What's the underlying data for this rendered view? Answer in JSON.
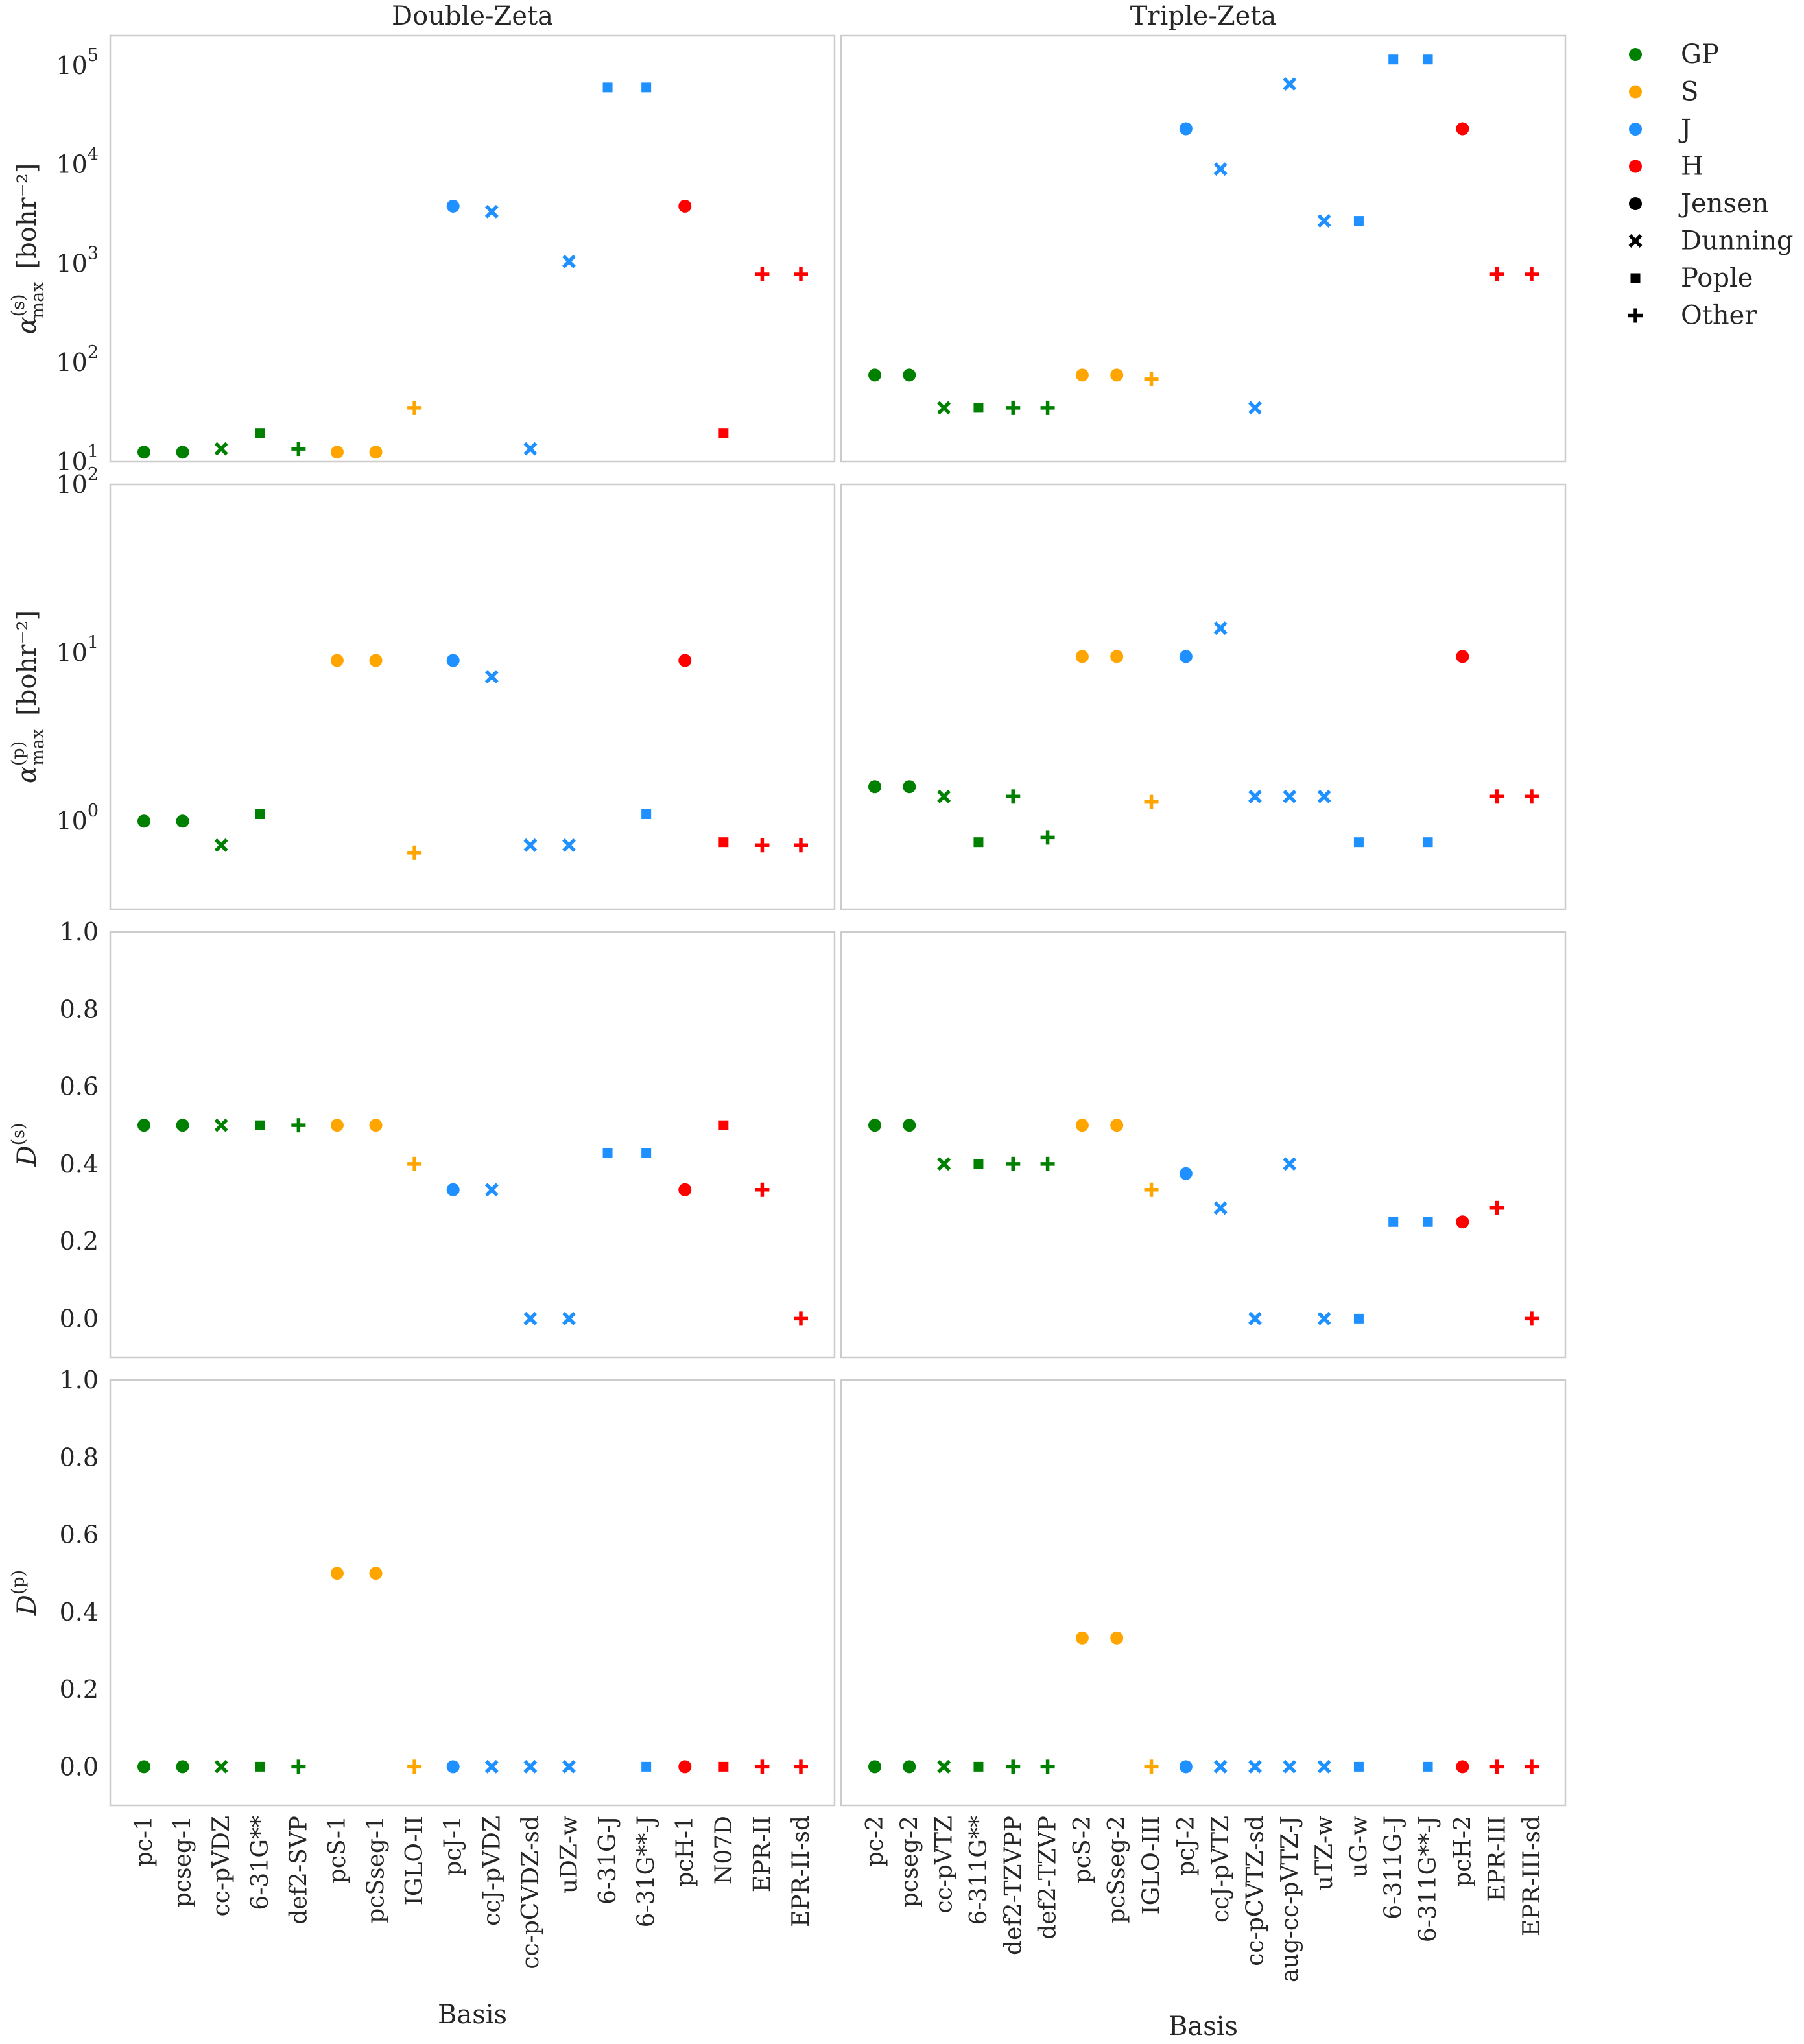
{
  "chart_data": {
    "type": "scatter",
    "column_titles": [
      "Double-Zeta",
      "Triple-Zeta"
    ],
    "xlabel": "Basis",
    "row_labels": [
      {
        "prefix": "α",
        "sup": "(s)",
        "sub": "max",
        "unit": "[bohr⁻²]"
      },
      {
        "prefix": "α",
        "sup": "(p)",
        "sub": "max",
        "unit": "[bohr⁻²]"
      },
      {
        "prefix": "D",
        "sup": "(s)",
        "sub": "",
        "unit": ""
      },
      {
        "prefix": "D",
        "sup": "(p)",
        "sub": "",
        "unit": ""
      }
    ],
    "rows": [
      {
        "scale": "log",
        "ylim": [
          10,
          200000
        ],
        "ticks": [
          {
            "v": 10,
            "e": "1"
          },
          {
            "v": 100,
            "e": "2"
          },
          {
            "v": 1000,
            "e": "3"
          },
          {
            "v": 10000,
            "e": "4"
          },
          {
            "v": 100000,
            "e": "5"
          }
        ]
      },
      {
        "scale": "log",
        "ylim": [
          0.3,
          100
        ],
        "ticks": [
          {
            "v": 1,
            "e": "0"
          },
          {
            "v": 10,
            "e": "1"
          },
          {
            "v": 100,
            "e": "2"
          }
        ]
      },
      {
        "scale": "linear",
        "ylim": [
          -0.1,
          1.0
        ],
        "ticks": [
          {
            "v": 0.0,
            "t": "0.0"
          },
          {
            "v": 0.2,
            "t": "0.2"
          },
          {
            "v": 0.4,
            "t": "0.4"
          },
          {
            "v": 0.6,
            "t": "0.6"
          },
          {
            "v": 0.8,
            "t": "0.8"
          },
          {
            "v": 1.0,
            "t": "1.0"
          }
        ]
      },
      {
        "scale": "linear",
        "ylim": [
          -0.1,
          1.0
        ],
        "ticks": [
          {
            "v": 0.0,
            "t": "0.0"
          },
          {
            "v": 0.2,
            "t": "0.2"
          },
          {
            "v": 0.4,
            "t": "0.4"
          },
          {
            "v": 0.6,
            "t": "0.6"
          },
          {
            "v": 0.8,
            "t": "0.8"
          },
          {
            "v": 1.0,
            "t": "1.0"
          }
        ]
      }
    ],
    "groups": [
      {
        "key": "GP",
        "label": "GP",
        "color": "#008000"
      },
      {
        "key": "S",
        "label": "S",
        "color": "#FFA500"
      },
      {
        "key": "J",
        "label": "J",
        "color": "#1E90FF"
      },
      {
        "key": "H",
        "label": "H",
        "color": "#FF0000"
      }
    ],
    "families": [
      {
        "key": "Jensen",
        "label": "Jensen",
        "marker": "circle"
      },
      {
        "key": "Dunning",
        "label": "Dunning",
        "marker": "x"
      },
      {
        "key": "Pople",
        "label": "Pople",
        "marker": "square"
      },
      {
        "key": "Other",
        "label": "Other",
        "marker": "plus"
      }
    ],
    "columns": [
      {
        "title": "Double-Zeta",
        "bases": [
          {
            "name": "pc-1",
            "group": "GP",
            "family": "Jensen",
            "values": [
              12.5,
              1.0,
              0.5,
              0.0
            ]
          },
          {
            "name": "pcseg-1",
            "group": "GP",
            "family": "Jensen",
            "values": [
              12.5,
              1.0,
              0.5,
              0.0
            ]
          },
          {
            "name": "cc-pVDZ",
            "group": "GP",
            "family": "Dunning",
            "values": [
              13.5,
              0.72,
              0.5,
              0.0
            ]
          },
          {
            "name": "6-31G**",
            "group": "GP",
            "family": "Pople",
            "values": [
              19.5,
              1.1,
              0.5,
              0.0
            ]
          },
          {
            "name": "def2-SVP",
            "group": "GP",
            "family": "Other",
            "values": [
              13.5,
              null,
              0.5,
              0.0
            ]
          },
          {
            "name": "pcS-1",
            "group": "S",
            "family": "Jensen",
            "values": [
              12.5,
              9.0,
              0.5,
              0.5
            ]
          },
          {
            "name": "pcSseg-1",
            "group": "S",
            "family": "Jensen",
            "values": [
              12.5,
              9.0,
              0.5,
              0.5
            ]
          },
          {
            "name": "IGLO-II",
            "group": "S",
            "family": "Other",
            "values": [
              35.0,
              0.65,
              0.4,
              0.0
            ]
          },
          {
            "name": "pcJ-1",
            "group": "J",
            "family": "Jensen",
            "values": [
              3800,
              9.0,
              0.333,
              0.0
            ]
          },
          {
            "name": "ccJ-pVDZ",
            "group": "J",
            "family": "Dunning",
            "values": [
              3350,
              7.2,
              0.333,
              0.0
            ]
          },
          {
            "name": "cc-pCVDZ-sd",
            "group": "J",
            "family": "Dunning",
            "values": [
              13.5,
              0.72,
              0.0,
              0.0
            ]
          },
          {
            "name": "uDZ-w",
            "group": "J",
            "family": "Dunning",
            "values": [
              1050,
              0.72,
              0.0,
              0.0
            ]
          },
          {
            "name": "6-31G-J",
            "group": "J",
            "family": "Pople",
            "values": [
              60000,
              null,
              0.429,
              null
            ]
          },
          {
            "name": "6-31G**-J",
            "group": "J",
            "family": "Pople",
            "values": [
              60000,
              1.1,
              0.429,
              0.0
            ]
          },
          {
            "name": "pcH-1",
            "group": "H",
            "family": "Jensen",
            "values": [
              3800,
              9.0,
              0.333,
              0.0
            ]
          },
          {
            "name": "N07D",
            "group": "H",
            "family": "Pople",
            "values": [
              19.5,
              0.75,
              0.5,
              0.0
            ]
          },
          {
            "name": "EPR-II",
            "group": "H",
            "family": "Other",
            "values": [
              780,
              0.72,
              0.333,
              0.0
            ]
          },
          {
            "name": "EPR-II-sd",
            "group": "H",
            "family": "Other",
            "values": [
              780,
              0.72,
              0.0,
              0.0
            ]
          }
        ]
      },
      {
        "title": "Triple-Zeta",
        "bases": [
          {
            "name": "pc-2",
            "group": "GP",
            "family": "Jensen",
            "values": [
              75,
              1.6,
              0.5,
              0.0
            ]
          },
          {
            "name": "pcseg-2",
            "group": "GP",
            "family": "Jensen",
            "values": [
              75,
              1.6,
              0.5,
              0.0
            ]
          },
          {
            "name": "cc-pVTZ",
            "group": "GP",
            "family": "Dunning",
            "values": [
              35,
              1.4,
              0.4,
              0.0
            ]
          },
          {
            "name": "6-311G**",
            "group": "GP",
            "family": "Pople",
            "values": [
              35,
              0.75,
              0.4,
              0.0
            ]
          },
          {
            "name": "def2-TZVPP",
            "group": "GP",
            "family": "Other",
            "values": [
              35,
              1.4,
              0.4,
              0.0
            ]
          },
          {
            "name": "def2-TZVP",
            "group": "GP",
            "family": "Other",
            "values": [
              35,
              0.8,
              0.4,
              0.0
            ]
          },
          {
            "name": "pcS-2",
            "group": "S",
            "family": "Jensen",
            "values": [
              75,
              9.5,
              0.5,
              0.333
            ]
          },
          {
            "name": "pcSseg-2",
            "group": "S",
            "family": "Jensen",
            "values": [
              75,
              9.5,
              0.5,
              0.333
            ]
          },
          {
            "name": "IGLO-III",
            "group": "S",
            "family": "Other",
            "values": [
              68,
              1.3,
              0.333,
              0.0
            ]
          },
          {
            "name": "pcJ-2",
            "group": "J",
            "family": "Jensen",
            "values": [
              23000,
              9.5,
              0.375,
              0.0
            ]
          },
          {
            "name": "ccJ-pVTZ",
            "group": "J",
            "family": "Dunning",
            "values": [
              9000,
              14.0,
              0.286,
              0.0
            ]
          },
          {
            "name": "cc-pCVTZ-sd",
            "group": "J",
            "family": "Dunning",
            "values": [
              35,
              1.4,
              0.0,
              0.0
            ]
          },
          {
            "name": "aug-cc-pVTZ-J",
            "group": "J",
            "family": "Dunning",
            "values": [
              65000,
              1.4,
              0.4,
              0.0
            ]
          },
          {
            "name": "uTZ-w",
            "group": "J",
            "family": "Dunning",
            "values": [
              2700,
              1.4,
              0.0,
              0.0
            ]
          },
          {
            "name": "uG-w",
            "group": "J",
            "family": "Pople",
            "values": [
              2700,
              0.75,
              0.0,
              0.0
            ]
          },
          {
            "name": "6-311G-J",
            "group": "J",
            "family": "Pople",
            "values": [
              115000,
              null,
              0.25,
              null
            ]
          },
          {
            "name": "6-311G**-J",
            "group": "J",
            "family": "Pople",
            "values": [
              115000,
              0.75,
              0.25,
              0.0
            ]
          },
          {
            "name": "pcH-2",
            "group": "H",
            "family": "Jensen",
            "values": [
              23000,
              9.5,
              0.25,
              0.0
            ]
          },
          {
            "name": "EPR-III",
            "group": "H",
            "family": "Other",
            "values": [
              780,
              1.4,
              0.286,
              0.0
            ]
          },
          {
            "name": "EPR-III-sd",
            "group": "H",
            "family": "Other",
            "values": [
              780,
              1.4,
              0.0,
              0.0
            ]
          }
        ]
      }
    ]
  }
}
